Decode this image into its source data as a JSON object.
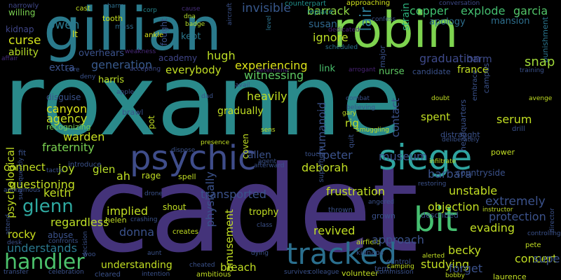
{
  "words": [
    {
      "text": "roxanne",
      "color": "#2a8a8b"
    },
    {
      "text": "cadet",
      "color": "#44337a"
    },
    {
      "text": "gillian",
      "color": "#2a7a8c"
    },
    {
      "text": "robin",
      "color": "#7ed34f"
    },
    {
      "text": "siege",
      "color": "#2fa4a0"
    },
    {
      "text": "psychic",
      "color": "#3f4d8a"
    },
    {
      "text": "tracked",
      "color": "#2b6f8e"
    },
    {
      "text": "bit",
      "color": "#45bf70"
    },
    {
      "text": "handler",
      "color": "#4cc26c"
    },
    {
      "text": "glenn",
      "color": "#2fa9a0"
    },
    {
      "text": "lair",
      "color": "#2b758e"
    },
    {
      "text": "copper",
      "color": "#3fc170"
    },
    {
      "text": "explode",
      "color": "#44bf70"
    },
    {
      "text": "garcia",
      "color": "#52c569"
    },
    {
      "text": "invisible",
      "color": "#38588c"
    },
    {
      "text": "barrack",
      "color": "#8fd744"
    },
    {
      "text": "susan",
      "color": "#30688e"
    },
    {
      "text": "ignore",
      "color": "#bddf26"
    },
    {
      "text": "strain",
      "color": "#2db27d"
    },
    {
      "text": "mansion",
      "color": "#2e6f8e"
    },
    {
      "text": "apology",
      "color": "#2e6e8e"
    },
    {
      "text": "conversation",
      "color": "#3e4a89"
    },
    {
      "text": "punishment",
      "color": "#2b758e"
    },
    {
      "text": "hugh",
      "color": "#bddf26"
    },
    {
      "text": "witnessing",
      "color": "#5ec962"
    },
    {
      "text": "experiencing",
      "color": "#dce319"
    },
    {
      "text": "link",
      "color": "#4ac16d"
    },
    {
      "text": "graduation",
      "color": "#3e4989"
    },
    {
      "text": "harm",
      "color": "#3e4c8a"
    },
    {
      "text": "snap",
      "color": "#a0da39"
    },
    {
      "text": "france",
      "color": "#c2df23"
    },
    {
      "text": "generation",
      "color": "#38598c"
    },
    {
      "text": "everybody",
      "color": "#c2df23"
    },
    {
      "text": "extra",
      "color": "#3b528b"
    },
    {
      "text": "curse",
      "color": "#d2e21b"
    },
    {
      "text": "owen",
      "color": "#2a788e"
    },
    {
      "text": "ability",
      "color": "#b8de29"
    },
    {
      "text": "willing",
      "color": "#7ad151"
    },
    {
      "text": "narrowly",
      "color": "#3f4788"
    },
    {
      "text": "kidnap",
      "color": "#404688"
    },
    {
      "text": "affair",
      "color": "#472d7b"
    },
    {
      "text": "cast",
      "color": "#c2df23"
    },
    {
      "text": "tooth",
      "color": "#c8e020"
    },
    {
      "text": "charm",
      "color": "#2e6e8e"
    },
    {
      "text": "mass",
      "color": "#2f6c8e"
    },
    {
      "text": "corp",
      "color": "#25858e"
    },
    {
      "text": "cause",
      "color": "#472e7c"
    },
    {
      "text": "dna",
      "color": "#b5de2b"
    },
    {
      "text": "badge",
      "color": "#b5de2b"
    },
    {
      "text": "aircraft",
      "color": "#3b528b"
    },
    {
      "text": "level",
      "color": "#2c738e"
    },
    {
      "text": "counterpart",
      "color": "#21918c"
    },
    {
      "text": "approaching",
      "color": "#d0e11c"
    },
    {
      "text": "replace",
      "color": "#21918c"
    },
    {
      "text": "dedicated",
      "color": "#482173"
    },
    {
      "text": "confess",
      "color": "#3b528b"
    },
    {
      "text": "lt",
      "color": "#dce319"
    },
    {
      "text": "ankle",
      "color": "#d8e219"
    },
    {
      "text": "fought",
      "color": "#3b528b"
    },
    {
      "text": "kept",
      "color": "#2a788e"
    },
    {
      "text": "academy",
      "color": "#404688"
    },
    {
      "text": "weakness",
      "color": "#482979"
    },
    {
      "text": "overhears",
      "color": "#3b528b"
    },
    {
      "text": "core",
      "color": "#3b528b"
    },
    {
      "text": "accepting",
      "color": "#3e4989"
    },
    {
      "text": "deny",
      "color": "#3b528b"
    },
    {
      "text": "harris",
      "color": "#bddf26"
    },
    {
      "text": "scheduled",
      "color": "#2c728e"
    },
    {
      "text": "major",
      "color": "#3b528b"
    },
    {
      "text": "determine",
      "color": "#482374"
    },
    {
      "text": "arrogant",
      "color": "#482374"
    },
    {
      "text": "nurse",
      "color": "#5ec962"
    },
    {
      "text": "candidate",
      "color": "#3b528b"
    },
    {
      "text": "training",
      "color": "#3b528b"
    },
    {
      "text": "psychological",
      "color": "#c2df23"
    },
    {
      "text": "subsequently",
      "color": "#3b528b"
    },
    {
      "text": "disguise",
      "color": "#3b528b"
    },
    {
      "text": "canyon",
      "color": "#dce319"
    },
    {
      "text": "agency",
      "color": "#c8e020"
    },
    {
      "text": "recognizing",
      "color": "#75d054"
    },
    {
      "text": "warden",
      "color": "#c8e020"
    },
    {
      "text": "fraternity",
      "color": "#7ad151"
    },
    {
      "text": "connect",
      "color": "#c2df23"
    },
    {
      "text": "joy",
      "color": "#b8de29"
    },
    {
      "text": "glen",
      "color": "#b8de29"
    },
    {
      "text": "fit",
      "color": "#3b528b"
    },
    {
      "text": "tactic",
      "color": "#3b528b"
    },
    {
      "text": "introduce",
      "color": "#3b528b"
    },
    {
      "text": "questioning",
      "color": "#c2df23"
    },
    {
      "text": "keith",
      "color": "#c2df23"
    },
    {
      "text": "anonymous",
      "color": "#3b528b"
    },
    {
      "text": "regardless",
      "color": "#bddf26"
    },
    {
      "text": "rocky",
      "color": "#cde11d"
    },
    {
      "text": "abuse",
      "color": "#3b528b"
    },
    {
      "text": "confronts",
      "color": "#3b528b"
    },
    {
      "text": "understands",
      "color": "#2a788e"
    },
    {
      "text": "attend",
      "color": "#3b528b"
    },
    {
      "text": "desk",
      "color": "#3b528b"
    },
    {
      "text": "transfer",
      "color": "#3b528b"
    },
    {
      "text": "celebration",
      "color": "#3b528b"
    },
    {
      "text": "woo",
      "color": "#3b528b"
    },
    {
      "text": "decision",
      "color": "#3b528b"
    },
    {
      "text": "ah",
      "color": "#c2df23"
    },
    {
      "text": "rage",
      "color": "#c2df23"
    },
    {
      "text": "spell",
      "color": "#c2df23"
    },
    {
      "text": "drone",
      "color": "#3b528b"
    },
    {
      "text": "implied",
      "color": "#c2df23"
    },
    {
      "text": "shout",
      "color": "#c2df23"
    },
    {
      "text": "donna",
      "color": "#3b528b"
    },
    {
      "text": "helen",
      "color": "#c2df23"
    },
    {
      "text": "crashing",
      "color": "#3b528b"
    },
    {
      "text": "aunt",
      "color": "#3b528b"
    },
    {
      "text": "creates",
      "color": "#c2df23"
    },
    {
      "text": "understanding",
      "color": "#c2df23"
    },
    {
      "text": "cheated",
      "color": "#3b528b"
    },
    {
      "text": "ambitious",
      "color": "#c2df23"
    },
    {
      "text": "cleared",
      "color": "#3b528b"
    },
    {
      "text": "intention",
      "color": "#3b528b"
    },
    {
      "text": "breach",
      "color": "#c2df23"
    },
    {
      "text": "dying",
      "color": "#3b528b"
    },
    {
      "text": "trophy",
      "color": "#c2df23"
    },
    {
      "text": "class",
      "color": "#3b528b"
    },
    {
      "text": "survives",
      "color": "#3b528b"
    },
    {
      "text": "colleague",
      "color": "#3b528b"
    },
    {
      "text": "volunteer",
      "color": "#c2df23"
    },
    {
      "text": "commission",
      "color": "#3b528b"
    },
    {
      "text": "term",
      "color": "#3b528b"
    },
    {
      "text": "thrown",
      "color": "#3b528b"
    },
    {
      "text": "grown",
      "color": "#3b528b"
    },
    {
      "text": "angered",
      "color": "#3b528b"
    },
    {
      "text": "airfield",
      "color": "#c2df23"
    },
    {
      "text": "kidnaps",
      "color": "#3b528b"
    },
    {
      "text": "control",
      "color": "#3b528b"
    },
    {
      "text": "alerted",
      "color": "#c2df23"
    },
    {
      "text": "camping",
      "color": "#c2df23"
    },
    {
      "text": "studying",
      "color": "#c2df23"
    },
    {
      "text": "revived",
      "color": "#c2df23"
    },
    {
      "text": "approach",
      "color": "#3b528b"
    },
    {
      "text": "described",
      "color": "#3b528b"
    },
    {
      "text": "bobby",
      "color": "#c2df23"
    },
    {
      "text": "forget",
      "color": "#3b528b"
    },
    {
      "text": "laurence",
      "color": "#c2df23"
    },
    {
      "text": "becky",
      "color": "#c2df23"
    },
    {
      "text": "concert",
      "color": "#c2df23"
    },
    {
      "text": "evading",
      "color": "#c2df23"
    },
    {
      "text": "protection",
      "color": "#3b528b"
    },
    {
      "text": "pete",
      "color": "#c2df23"
    },
    {
      "text": "superior",
      "color": "#3b528b"
    },
    {
      "text": "controlling",
      "color": "#3b528b"
    },
    {
      "text": "director",
      "color": "#3b528b"
    },
    {
      "text": "instructor",
      "color": "#c2df23"
    },
    {
      "text": "extremely",
      "color": "#3b528b"
    },
    {
      "text": "objection",
      "color": "#c2df23"
    },
    {
      "text": "unstable",
      "color": "#c2df23"
    },
    {
      "text": "transported",
      "color": "#3b528b"
    },
    {
      "text": "physically",
      "color": "#3b528b"
    },
    {
      "text": "amusement",
      "color": "#c2df23"
    },
    {
      "text": "frustration",
      "color": "#c2df23"
    },
    {
      "text": "deborah",
      "color": "#c2df23"
    },
    {
      "text": "peter",
      "color": "#3b528b"
    },
    {
      "text": "superhero",
      "color": "#3b528b"
    },
    {
      "text": "museum",
      "color": "#3b528b"
    },
    {
      "text": "countryside",
      "color": "#3b528b"
    },
    {
      "text": "power",
      "color": "#c2df23"
    },
    {
      "text": "barbara",
      "color": "#3b528b"
    },
    {
      "text": "restoring",
      "color": "#3b528b"
    },
    {
      "text": "infiltrate",
      "color": "#c2df23"
    },
    {
      "text": "allen",
      "color": "#3b528b"
    },
    {
      "text": "touch",
      "color": "#3b528b"
    },
    {
      "text": "agent",
      "color": "#3b528b"
    },
    {
      "text": "afterward",
      "color": "#3b528b"
    },
    {
      "text": "dispose",
      "color": "#3b528b"
    },
    {
      "text": "presence",
      "color": "#c2df23"
    },
    {
      "text": "coven",
      "color": "#c2df23"
    },
    {
      "text": "heavily",
      "color": "#c2df23"
    },
    {
      "text": "gradually",
      "color": "#c2df23"
    },
    {
      "text": "pot",
      "color": "#c2df23"
    },
    {
      "text": "brawl",
      "color": "#3b528b"
    },
    {
      "text": "apple",
      "color": "#3b528b"
    },
    {
      "text": "avail",
      "color": "#3b528b"
    },
    {
      "text": "dad",
      "color": "#3b528b"
    },
    {
      "text": "sens",
      "color": "#c2df23"
    },
    {
      "text": "rig",
      "color": "#c2df23"
    },
    {
      "text": "humanoid",
      "color": "#3b528b"
    },
    {
      "text": "quit",
      "color": "#3b528b"
    },
    {
      "text": "smuggling",
      "color": "#c2df23"
    },
    {
      "text": "contact",
      "color": "#3b528b"
    },
    {
      "text": "combat",
      "color": "#3b528b"
    },
    {
      "text": "believing",
      "color": "#3b528b"
    },
    {
      "text": "gary",
      "color": "#c2df23"
    },
    {
      "text": "spent",
      "color": "#c2df23"
    },
    {
      "text": "distraught",
      "color": "#3b528b"
    },
    {
      "text": "headquarters",
      "color": "#3b528b"
    },
    {
      "text": "embrace",
      "color": "#3b528b"
    },
    {
      "text": "campus",
      "color": "#3b528b"
    },
    {
      "text": "doubt",
      "color": "#c2df23"
    },
    {
      "text": "avenge",
      "color": "#c2df23"
    },
    {
      "text": "serum",
      "color": "#c2df23"
    },
    {
      "text": "drill",
      "color": "#3b528b"
    },
    {
      "text": "deliberately",
      "color": "#3b528b"
    }
  ]
}
